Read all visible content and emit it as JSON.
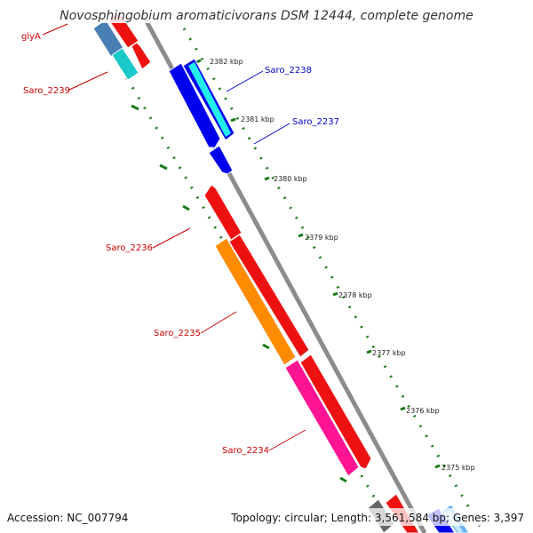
{
  "title": "Novosphingobium aromaticivorans DSM 12444, complete genome",
  "footer": {
    "accession": "Accession: NC_007794",
    "summary": "Topology: circular; Length: 3,561,584 bp; Genes: 3,397"
  },
  "colors": {
    "backbone": "#8c8c8c",
    "tick": "#1a7a1a",
    "label_red": "#cc0000",
    "label_blue": "#0000cc"
  },
  "ticks": [
    {
      "label": "2382 kbp",
      "kbp": 2382
    },
    {
      "label": "2381 kbp",
      "kbp": 2381
    },
    {
      "label": "2380 kbp",
      "kbp": 2380
    },
    {
      "label": "2379 kbp",
      "kbp": 2379
    },
    {
      "label": "2378 kbp",
      "kbp": 2378
    },
    {
      "label": "2377 kbp",
      "kbp": 2377
    },
    {
      "label": "2376 kbp",
      "kbp": 2376
    },
    {
      "label": "2375 kbp",
      "kbp": 2375
    }
  ],
  "gene_labels": [
    {
      "id": "glyA",
      "text": "glyA",
      "color": "#cc0000"
    },
    {
      "id": "saro2239",
      "text": "Saro_2239",
      "color": "#cc0000"
    },
    {
      "id": "saro2238",
      "text": "Saro_2238",
      "color": "#0000cc"
    },
    {
      "id": "saro2237",
      "text": "Saro_2237",
      "color": "#0000cc"
    },
    {
      "id": "saro2236",
      "text": "Saro_2236",
      "color": "#cc0000"
    },
    {
      "id": "saro2235",
      "text": "Saro_2235",
      "color": "#cc0000"
    },
    {
      "id": "saro2234",
      "text": "Saro_2234",
      "color": "#cc0000"
    }
  ]
}
